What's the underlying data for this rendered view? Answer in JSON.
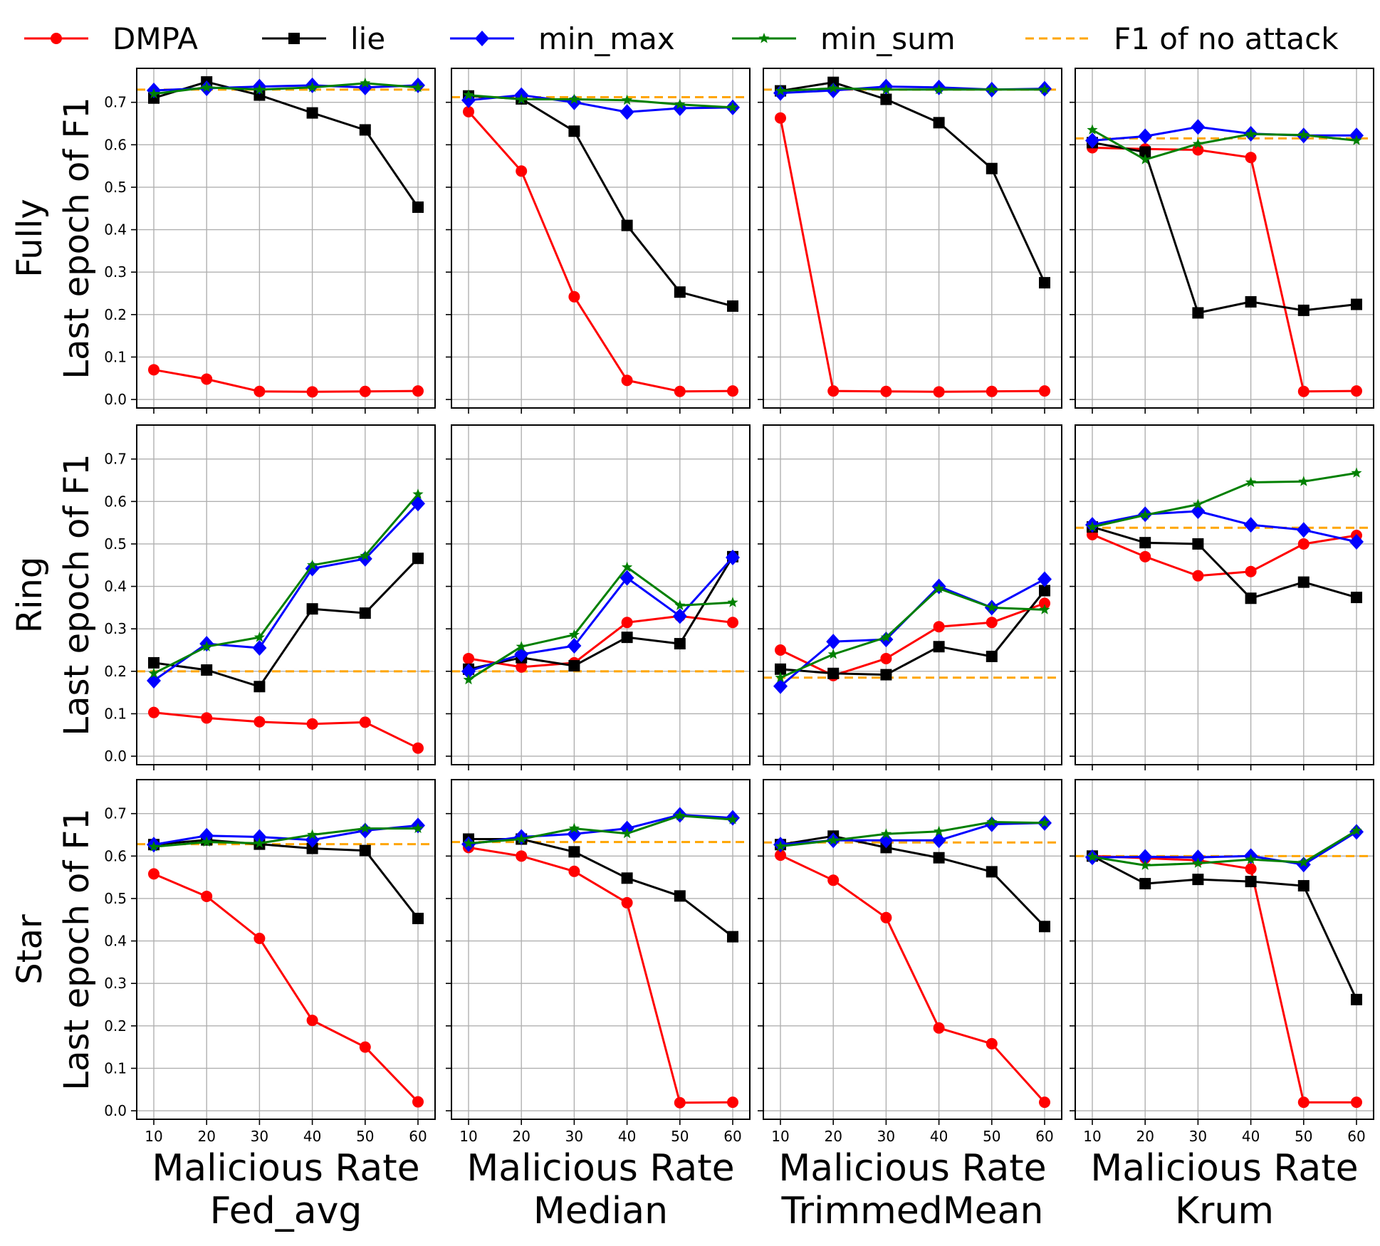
{
  "chart_data": {
    "type": "line",
    "layout": "3x4 grid",
    "legend": {
      "placement": "top",
      "entries": [
        {
          "name": "DMPA",
          "color": "#ff0000",
          "marker": "circle"
        },
        {
          "name": "lie",
          "color": "#000000",
          "marker": "square"
        },
        {
          "name": "min_max",
          "color": "#0000ff",
          "marker": "diamond"
        },
        {
          "name": "min_sum",
          "color": "#008000",
          "marker": "star"
        },
        {
          "name": "F1 of no attack",
          "color": "#ffa500",
          "marker": "dashed-line"
        }
      ]
    },
    "x": [
      10,
      20,
      30,
      40,
      50,
      60
    ],
    "xticks": [
      "10",
      "20",
      "30",
      "40",
      "50",
      "60"
    ],
    "yticks": [
      "0.0",
      "0.1",
      "0.2",
      "0.3",
      "0.4",
      "0.5",
      "0.6",
      "0.7"
    ],
    "ylim": [
      -0.02,
      0.78
    ],
    "grid": true,
    "xlabel_line1": "Malicious Rate",
    "columns": [
      "Fed_avg",
      "Median",
      "TrimmedMean",
      "Krum"
    ],
    "rows": [
      {
        "name": "Fully",
        "ylabel": "Last epoch of F1"
      },
      {
        "name": "Ring",
        "ylabel": "Last epoch of F1"
      },
      {
        "name": "Star",
        "ylabel": "Last epoch of F1"
      }
    ],
    "panels": [
      [
        {
          "DMPA": [
            0.07,
            0.048,
            0.019,
            0.018,
            0.019,
            0.02
          ],
          "lie": [
            0.71,
            0.748,
            0.717,
            0.675,
            0.635,
            0.453
          ],
          "min_max": [
            0.728,
            0.733,
            0.737,
            0.74,
            0.735,
            0.74
          ],
          "min_sum": [
            0.72,
            0.735,
            0.73,
            0.735,
            0.745,
            0.735
          ],
          "no_attack": 0.73
        },
        {
          "DMPA": [
            0.678,
            0.538,
            0.242,
            0.045,
            0.019,
            0.02
          ],
          "lie": [
            0.715,
            0.708,
            0.632,
            0.41,
            0.253,
            0.22
          ],
          "min_max": [
            0.705,
            0.717,
            0.7,
            0.677,
            0.686,
            0.688
          ],
          "min_sum": [
            0.717,
            0.707,
            0.707,
            0.705,
            0.695,
            0.688
          ],
          "no_attack": 0.712
        },
        {
          "DMPA": [
            0.663,
            0.02,
            0.019,
            0.018,
            0.019,
            0.02
          ],
          "lie": [
            0.727,
            0.747,
            0.707,
            0.652,
            0.544,
            0.275
          ],
          "min_max": [
            0.722,
            0.728,
            0.737,
            0.735,
            0.73,
            0.732
          ],
          "min_sum": [
            0.727,
            0.733,
            0.73,
            0.73,
            0.73,
            0.73
          ],
          "no_attack": 0.73
        },
        {
          "DMPA": [
            0.593,
            0.59,
            0.588,
            0.57,
            0.019,
            0.02
          ],
          "lie": [
            0.605,
            0.583,
            0.204,
            0.23,
            0.21,
            0.224
          ],
          "min_max": [
            0.61,
            0.62,
            0.642,
            0.626,
            0.622,
            0.622
          ],
          "min_sum": [
            0.635,
            0.565,
            0.602,
            0.625,
            0.623,
            0.61
          ],
          "no_attack": 0.615
        }
      ],
      [
        {
          "DMPA": [
            0.103,
            0.09,
            0.081,
            0.076,
            0.08,
            0.019
          ],
          "lie": [
            0.22,
            0.203,
            0.164,
            0.347,
            0.337,
            0.466
          ],
          "min_max": [
            0.178,
            0.265,
            0.255,
            0.442,
            0.465,
            0.595
          ],
          "min_sum": [
            0.195,
            0.258,
            0.28,
            0.45,
            0.472,
            0.617
          ],
          "no_attack": 0.2
        },
        {
          "DMPA": [
            0.23,
            0.21,
            0.22,
            0.315,
            0.33,
            0.315
          ],
          "lie": [
            0.205,
            0.232,
            0.213,
            0.28,
            0.265,
            0.47
          ],
          "min_max": [
            0.2,
            0.24,
            0.26,
            0.42,
            0.33,
            0.468
          ],
          "min_sum": [
            0.18,
            0.258,
            0.286,
            0.445,
            0.355,
            0.362
          ],
          "no_attack": 0.2
        },
        {
          "DMPA": [
            0.25,
            0.19,
            0.23,
            0.305,
            0.315,
            0.36
          ],
          "lie": [
            0.205,
            0.195,
            0.192,
            0.258,
            0.235,
            0.39
          ],
          "min_max": [
            0.165,
            0.27,
            0.275,
            0.4,
            0.35,
            0.417
          ],
          "min_sum": [
            0.185,
            0.24,
            0.28,
            0.395,
            0.35,
            0.345
          ],
          "no_attack": 0.185
        },
        {
          "DMPA": [
            0.522,
            0.47,
            0.425,
            0.435,
            0.5,
            0.52
          ],
          "lie": [
            0.54,
            0.503,
            0.5,
            0.372,
            0.41,
            0.374
          ],
          "min_max": [
            0.545,
            0.57,
            0.577,
            0.545,
            0.533,
            0.505
          ],
          "min_sum": [
            0.54,
            0.568,
            0.593,
            0.645,
            0.647,
            0.667
          ],
          "no_attack": 0.538
        }
      ],
      [
        {
          "DMPA": [
            0.558,
            0.505,
            0.406,
            0.213,
            0.15,
            0.021
          ],
          "lie": [
            0.627,
            0.638,
            0.628,
            0.618,
            0.613,
            0.453
          ],
          "min_max": [
            0.627,
            0.648,
            0.645,
            0.638,
            0.66,
            0.672
          ],
          "min_sum": [
            0.622,
            0.633,
            0.63,
            0.65,
            0.665,
            0.665
          ],
          "no_attack": 0.628
        },
        {
          "DMPA": [
            0.62,
            0.6,
            0.564,
            0.49,
            0.019,
            0.02
          ],
          "lie": [
            0.64,
            0.64,
            0.61,
            0.548,
            0.506,
            0.41
          ],
          "min_max": [
            0.628,
            0.645,
            0.652,
            0.665,
            0.697,
            0.69
          ],
          "min_sum": [
            0.63,
            0.64,
            0.665,
            0.653,
            0.695,
            0.686
          ],
          "no_attack": 0.633
        },
        {
          "DMPA": [
            0.602,
            0.543,
            0.455,
            0.195,
            0.158,
            0.02
          ],
          "lie": [
            0.627,
            0.647,
            0.62,
            0.596,
            0.563,
            0.434
          ],
          "min_max": [
            0.627,
            0.637,
            0.637,
            0.637,
            0.675,
            0.678
          ],
          "min_sum": [
            0.623,
            0.637,
            0.652,
            0.658,
            0.68,
            0.678
          ],
          "no_attack": 0.632
        },
        {
          "DMPA": [
            0.6,
            0.595,
            0.59,
            0.57,
            0.02,
            0.02
          ],
          "lie": [
            0.6,
            0.535,
            0.545,
            0.54,
            0.53,
            0.262
          ],
          "min_max": [
            0.597,
            0.598,
            0.597,
            0.6,
            0.58,
            0.657
          ],
          "min_sum": [
            0.598,
            0.578,
            0.583,
            0.592,
            0.585,
            0.66
          ],
          "no_attack": 0.6
        }
      ]
    ]
  }
}
